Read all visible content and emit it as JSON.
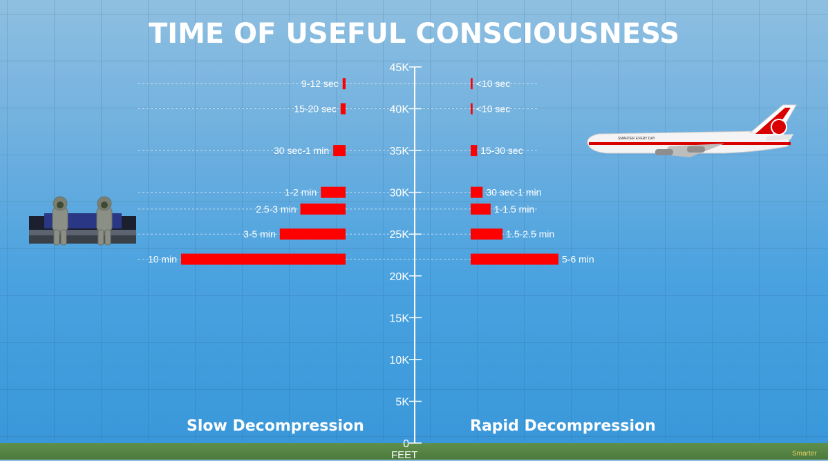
{
  "title": "TIME OF USEFUL CONSCIOUSNESS",
  "axis_unit": "FEET",
  "watermark": "Smarter",
  "chart_data": {
    "type": "bar",
    "orientation": "horizontal-diverging",
    "y_axis": {
      "ylim": [
        0,
        45000
      ],
      "ticks": [
        {
          "value": 0,
          "label": "0"
        },
        {
          "value": 5000,
          "label": "5K"
        },
        {
          "value": 10000,
          "label": "10K"
        },
        {
          "value": 15000,
          "label": "15K"
        },
        {
          "value": 20000,
          "label": "20K"
        },
        {
          "value": 25000,
          "label": "25K"
        },
        {
          "value": 30000,
          "label": "30K"
        },
        {
          "value": 35000,
          "label": "35K"
        },
        {
          "value": 40000,
          "label": "40K"
        },
        {
          "value": 45000,
          "label": "45K"
        }
      ]
    },
    "bar_color": "#ff0000",
    "series": [
      {
        "name": "Slow Decompression",
        "side": "left",
        "points": [
          {
            "altitude": 43000,
            "label": "9-12 sec",
            "value": 0.18
          },
          {
            "altitude": 40000,
            "label": "15-20 sec",
            "value": 0.3
          },
          {
            "altitude": 35000,
            "label": "30 sec-1 min",
            "value": 0.75
          },
          {
            "altitude": 30000,
            "label": "1-2 min",
            "value": 1.5
          },
          {
            "altitude": 28000,
            "label": "2.5-3 min",
            "value": 2.75
          },
          {
            "altitude": 25000,
            "label": "3-5 min",
            "value": 4
          },
          {
            "altitude": 22000,
            "label": "10 min",
            "value": 10
          }
        ]
      },
      {
        "name": "Rapid Decompression",
        "side": "right",
        "points": [
          {
            "altitude": 43000,
            "label": "<10 sec",
            "value": 0.12
          },
          {
            "altitude": 40000,
            "label": "<10 sec",
            "value": 0.12
          },
          {
            "altitude": 35000,
            "label": "15-30 sec",
            "value": 0.4
          },
          {
            "altitude": 30000,
            "label": "30 sec-1 min",
            "value": 0.75
          },
          {
            "altitude": 28000,
            "label": "1-1.5 min",
            "value": 1.25
          },
          {
            "altitude": 25000,
            "label": "1.5-2.5 min",
            "value": 2
          },
          {
            "altitude": 22000,
            "label": "5-6 min",
            "value": 5.5
          }
        ]
      }
    ]
  },
  "illustrations": {
    "left": "pilots-on-bench-illustration",
    "right": "airliner-illustration",
    "airliner_livery_text": "SMARTER EVERY DAY"
  }
}
